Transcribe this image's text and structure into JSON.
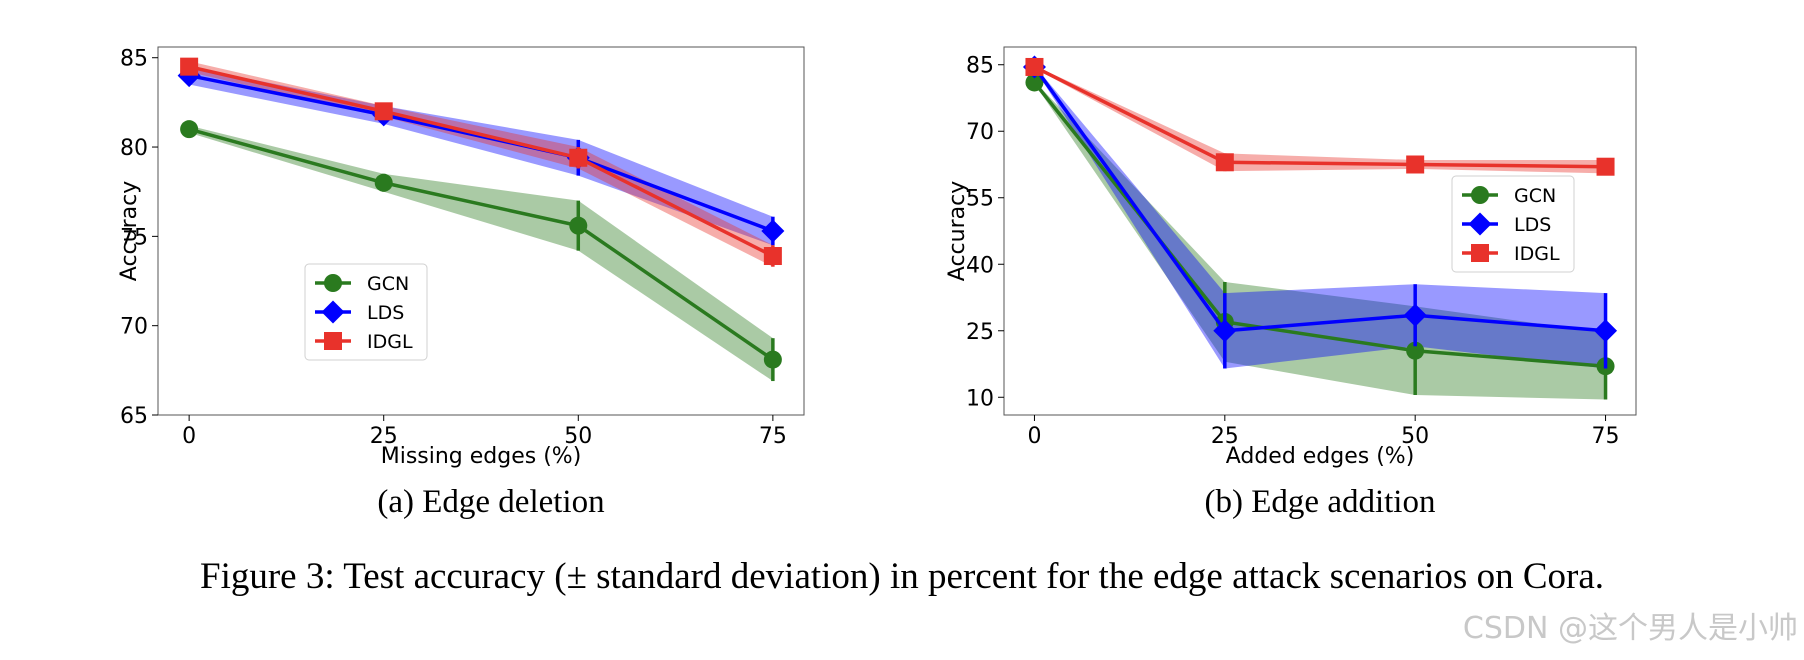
{
  "chart_data": [
    {
      "type": "line",
      "panel": "a",
      "subcaption": "(a) Edge deletion",
      "xlabel": "Missing edges (%)",
      "ylabel": "Accuracy",
      "x": [
        0,
        25,
        50,
        75
      ],
      "xticks": [
        0,
        25,
        50,
        75
      ],
      "yticks": [
        65,
        70,
        75,
        80,
        85
      ],
      "ylim": [
        65,
        85.6
      ],
      "xlim": [
        -4,
        79
      ],
      "legend_position": "center-left",
      "series": [
        {
          "name": "GCN",
          "color": "#2a7a1f",
          "marker": "circle",
          "values": [
            81.0,
            78.0,
            75.6,
            68.1
          ],
          "std": [
            0.2,
            0.5,
            1.4,
            1.2
          ]
        },
        {
          "name": "LDS",
          "color": "#0000ff",
          "marker": "diamond",
          "values": [
            84.0,
            81.8,
            79.4,
            75.3
          ],
          "std": [
            0.5,
            0.5,
            1.0,
            0.8
          ]
        },
        {
          "name": "IDGL",
          "color": "#e8322b",
          "marker": "square",
          "values": [
            84.5,
            82.0,
            79.4,
            73.9
          ],
          "std": [
            0.3,
            0.3,
            0.6,
            0.6
          ]
        }
      ]
    },
    {
      "type": "line",
      "panel": "b",
      "subcaption": "(b) Edge addition",
      "xlabel": "Added edges (%)",
      "ylabel": "Accuracy",
      "x": [
        0,
        25,
        50,
        75
      ],
      "xticks": [
        0,
        25,
        50,
        75
      ],
      "yticks": [
        10,
        25,
        40,
        55,
        70,
        85
      ],
      "ylim": [
        6,
        89
      ],
      "xlim": [
        -4,
        79
      ],
      "legend_position": "center-right",
      "series": [
        {
          "name": "GCN",
          "color": "#2a7a1f",
          "marker": "circle",
          "values": [
            81.0,
            27.0,
            20.5,
            17.0
          ],
          "std": [
            0.3,
            9.0,
            10.0,
            7.5
          ]
        },
        {
          "name": "LDS",
          "color": "#0000ff",
          "marker": "diamond",
          "values": [
            84.5,
            25.0,
            28.5,
            25.0
          ],
          "std": [
            0.3,
            8.5,
            7.0,
            8.5
          ]
        },
        {
          "name": "IDGL",
          "color": "#e8322b",
          "marker": "square",
          "values": [
            84.5,
            63.0,
            62.5,
            62.0
          ],
          "std": [
            0.3,
            2.0,
            1.0,
            1.5
          ]
        }
      ]
    }
  ],
  "caption": "Figure 3: Test accuracy (± standard deviation) in percent for the edge attack scenarios on Cora.",
  "watermark": "CSDN @这个男人是小帅"
}
